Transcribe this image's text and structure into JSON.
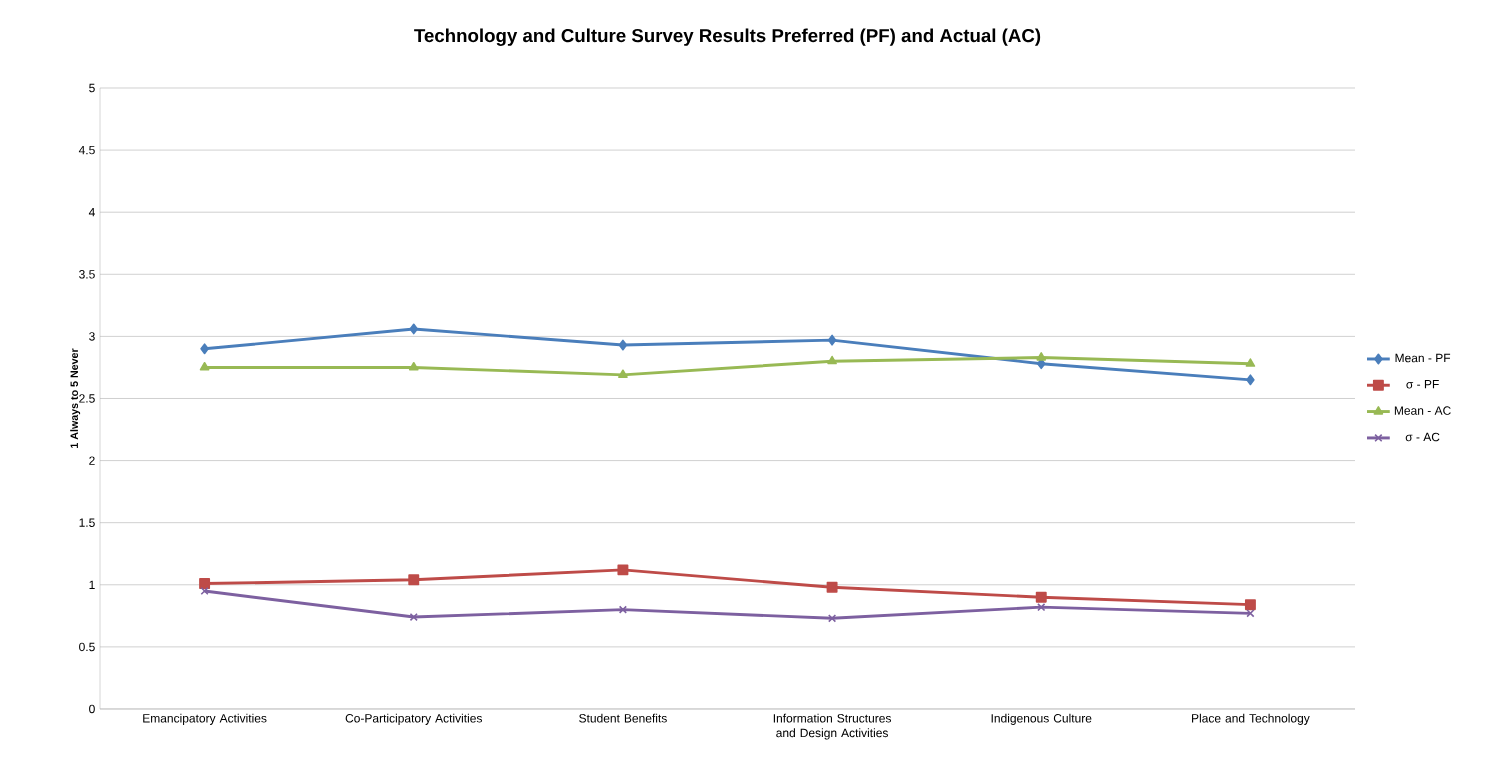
{
  "chart_data": {
    "type": "line",
    "title": "Technology and Culture Survey Results Preferred (PF) and Actual (AC)",
    "ylabel": "1 Always to 5 Never",
    "categories": [
      "Emancipatory Activities",
      "Co-Participatory Activities",
      "Student Benefits",
      "Information Structures and Design Activities",
      "Indigenous Culture",
      "Place and Technology"
    ],
    "series": [
      {
        "name": "Mean - PF",
        "color": "#4a7ebb",
        "marker": "diamond",
        "values": [
          2.9,
          3.06,
          2.93,
          2.97,
          2.78,
          2.65
        ]
      },
      {
        "name": "σ - PF",
        "color": "#be4b48",
        "marker": "square",
        "values": [
          1.01,
          1.04,
          1.12,
          0.98,
          0.9,
          0.84
        ]
      },
      {
        "name": "Mean - AC",
        "color": "#98b954",
        "marker": "triangle",
        "values": [
          2.75,
          2.75,
          2.69,
          2.8,
          2.83,
          2.78
        ]
      },
      {
        "name": "σ - AC",
        "color": "#7d60a0",
        "marker": "cross",
        "values": [
          0.95,
          0.74,
          0.8,
          0.73,
          0.82,
          0.77
        ]
      }
    ],
    "ylim": [
      0,
      5
    ],
    "yticks": [
      0,
      0.5,
      1,
      1.5,
      2,
      2.5,
      3,
      3.5,
      4,
      4.5,
      5
    ],
    "grid": "y",
    "legend": "right",
    "line_style": "solid"
  }
}
